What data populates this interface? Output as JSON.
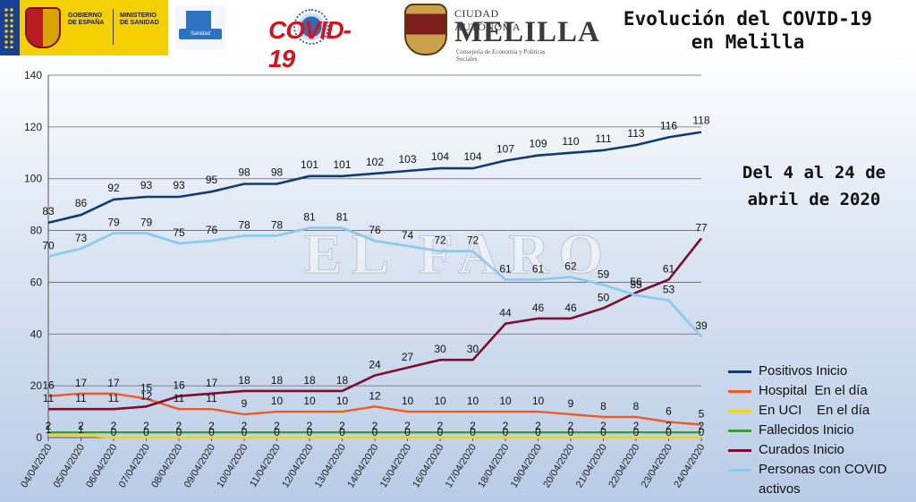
{
  "header": {
    "gov_line1": "GOBIERNO",
    "gov_line2": "DE ESPAÑA",
    "gov_line3": "MINISTERIO",
    "gov_line4": "DE SANIDAD",
    "sanidad_label": "Sanidad",
    "covid_logo": "COVID-19",
    "melilla_line1": "CIUDAD AUTÓNOMA",
    "melilla_line2": "MELILLA",
    "melilla_line3": "Consejería de Economía y Políticas Sociales",
    "title_line1": "Evolución del COVID-19",
    "title_line2": "en Melilla",
    "period_line1": "Del 4 al 24 de",
    "period_line2": "abril de 2020",
    "watermark": "EL FARO"
  },
  "colors": {
    "positivos": "#0f3d72",
    "hospital": "#f05a28",
    "uci": "#f3d21b",
    "fallecidos": "#3e9a36",
    "curados": "#7b0f2c",
    "activos": "#8ccaf0"
  },
  "chart_data": {
    "type": "line",
    "title": "Evolución del COVID-19 en Melilla",
    "ylim": [
      0,
      140
    ],
    "yticks": [
      0,
      20,
      40,
      60,
      80,
      100,
      120,
      140
    ],
    "grid": true,
    "legend_position": "right",
    "categories": [
      "04/04/2020",
      "05/04/2020",
      "06/04/2020",
      "07/04/2020",
      "08/04/2020",
      "09/04/2020",
      "10/04/2020",
      "11/04/2020",
      "12/04/2020",
      "13/04/2020",
      "14/04/2020",
      "15/04/2020",
      "16/04/2020",
      "17/04/2020",
      "18/04/2020",
      "19/04/2020",
      "20/04/2020",
      "21/04/2020",
      "22/04/2020",
      "23/04/2020",
      "24/04/2020"
    ],
    "series": [
      {
        "key": "positivos",
        "name": "Positivos Inicio",
        "values": [
          83,
          86,
          92,
          93,
          93,
          95,
          98,
          98,
          101,
          101,
          102,
          103,
          104,
          104,
          107,
          109,
          110,
          111,
          113,
          116,
          118
        ]
      },
      {
        "key": "hospital",
        "name": "Hospital  En el día",
        "values": [
          16,
          17,
          17,
          15,
          11,
          11,
          9,
          10,
          10,
          10,
          12,
          10,
          10,
          10,
          10,
          10,
          9,
          8,
          8,
          6,
          5
        ]
      },
      {
        "key": "uci",
        "name": "En UCI    En el día",
        "values": [
          1,
          1,
          0,
          0,
          0,
          0,
          0,
          0,
          0,
          0,
          0,
          0,
          0,
          0,
          0,
          0,
          0,
          0,
          0,
          0,
          0
        ]
      },
      {
        "key": "fallecidos",
        "name": "Fallecidos Inicio",
        "values": [
          2,
          2,
          2,
          2,
          2,
          2,
          2,
          2,
          2,
          2,
          2,
          2,
          2,
          2,
          2,
          2,
          2,
          2,
          2,
          2,
          2
        ]
      },
      {
        "key": "curados",
        "name": "Curados Inicio",
        "values": [
          11,
          11,
          11,
          12,
          16,
          17,
          18,
          18,
          18,
          18,
          24,
          27,
          30,
          30,
          44,
          46,
          46,
          50,
          56,
          61,
          77
        ]
      },
      {
        "key": "activos",
        "name": "Personas con COVID activos",
        "values": [
          70,
          73,
          79,
          79,
          75,
          76,
          78,
          78,
          81,
          81,
          76,
          74,
          72,
          72,
          61,
          61,
          62,
          59,
          55,
          53,
          39
        ]
      }
    ]
  }
}
